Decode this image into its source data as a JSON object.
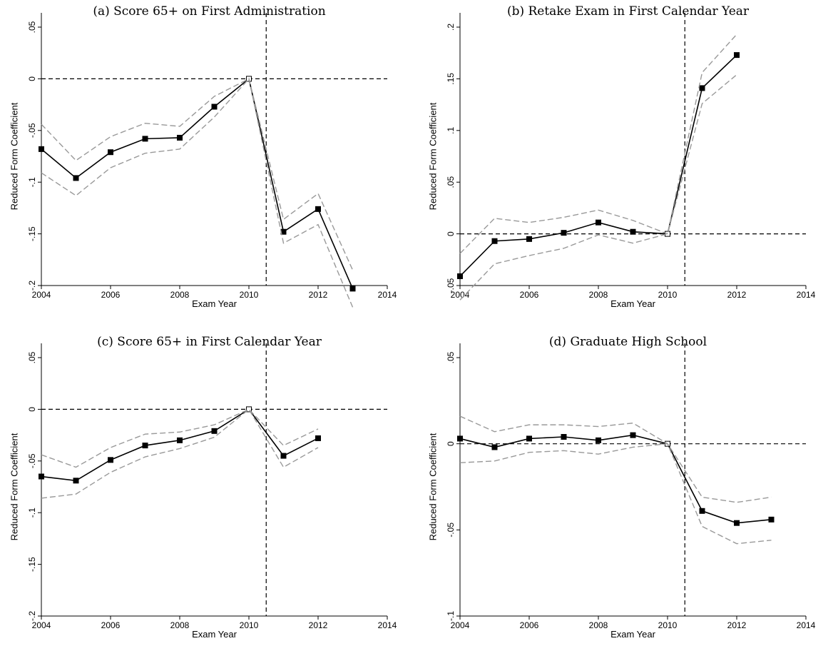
{
  "chart_data": [
    {
      "type": "line",
      "title": "(a) Score 65+ on First Administration",
      "xlabel": "Exam Year",
      "ylabel": "Reduced Form Coefficient",
      "xlim": [
        2004,
        2014
      ],
      "ylim": [
        -0.2,
        0.05
      ],
      "xticks": [
        2004,
        2006,
        2008,
        2010,
        2012,
        2014
      ],
      "xtick_labels": [
        "2004",
        "2006",
        "2008",
        "2010",
        "2012",
        "2014"
      ],
      "yticks": [
        0.05,
        0,
        -0.05,
        -0.1,
        -0.15,
        -0.2
      ],
      "ytick_labels": [
        ".05",
        "0",
        "-.05",
        "-.1",
        "-.15",
        "-.2"
      ],
      "vline": 2010.5,
      "hline": 0,
      "x": [
        2004,
        2005,
        2006,
        2007,
        2008,
        2009,
        2010,
        2011,
        2012,
        2013
      ],
      "series": [
        {
          "role": "estimate",
          "values": [
            -0.068,
            -0.096,
            -0.071,
            -0.058,
            -0.057,
            -0.027,
            0.0,
            -0.148,
            -0.126,
            -0.203
          ]
        },
        {
          "role": "ci-upper",
          "values": [
            -0.044,
            -0.079,
            -0.056,
            -0.043,
            -0.046,
            -0.017,
            0.0,
            -0.136,
            -0.111,
            -0.185
          ]
        },
        {
          "role": "ci-lower",
          "values": [
            -0.091,
            -0.113,
            -0.086,
            -0.072,
            -0.068,
            -0.037,
            0.0,
            -0.159,
            -0.141,
            -0.221
          ]
        }
      ]
    },
    {
      "type": "line",
      "title": "(b) Retake Exam in First Calendar Year",
      "xlabel": "Exam Year",
      "ylabel": "Reduced Form Coefficient",
      "xlim": [
        2004,
        2014
      ],
      "ylim": [
        -0.05,
        0.2
      ],
      "xticks": [
        2004,
        2006,
        2008,
        2010,
        2012,
        2014
      ],
      "xtick_labels": [
        "2004",
        "2006",
        "2008",
        "2010",
        "2012",
        "2014"
      ],
      "yticks": [
        0.2,
        0.15,
        0.1,
        0.05,
        0,
        -0.05
      ],
      "ytick_labels": [
        ".2",
        ".15",
        ".1",
        ".05",
        "0",
        "-.05"
      ],
      "vline": 2010.5,
      "hline": 0,
      "x": [
        2004,
        2005,
        2006,
        2007,
        2008,
        2009,
        2010,
        2011,
        2012
      ],
      "series": [
        {
          "role": "estimate",
          "values": [
            -0.041,
            -0.007,
            -0.005,
            0.001,
            0.011,
            0.002,
            0.0,
            0.141,
            0.173
          ]
        },
        {
          "role": "ci-upper",
          "values": [
            -0.019,
            0.015,
            0.011,
            0.016,
            0.023,
            0.013,
            0.0,
            0.156,
            0.193
          ]
        },
        {
          "role": "ci-lower",
          "values": [
            -0.064,
            -0.029,
            -0.021,
            -0.014,
            -0.001,
            -0.009,
            0.0,
            0.126,
            0.154
          ]
        }
      ]
    },
    {
      "type": "line",
      "title": "(c) Score 65+ in First Calendar Year",
      "xlabel": "Exam Year",
      "ylabel": "Reduced Form Coefficient",
      "xlim": [
        2004,
        2014
      ],
      "ylim": [
        -0.2,
        0.05
      ],
      "xticks": [
        2004,
        2006,
        2008,
        2010,
        2012,
        2014
      ],
      "xtick_labels": [
        "2004",
        "2006",
        "2008",
        "2010",
        "2012",
        "2014"
      ],
      "yticks": [
        0.05,
        0,
        -0.05,
        -0.1,
        -0.15,
        -0.2
      ],
      "ytick_labels": [
        ".05",
        "0",
        "-.05",
        "-.1",
        "-.15",
        "-.2"
      ],
      "vline": 2010.5,
      "hline": 0,
      "x": [
        2004,
        2005,
        2006,
        2007,
        2008,
        2009,
        2010,
        2011,
        2012
      ],
      "series": [
        {
          "role": "estimate",
          "values": [
            -0.065,
            -0.069,
            -0.049,
            -0.035,
            -0.03,
            -0.021,
            0.0,
            -0.045,
            -0.028
          ]
        },
        {
          "role": "ci-upper",
          "values": [
            -0.044,
            -0.056,
            -0.037,
            -0.024,
            -0.022,
            -0.015,
            0.0,
            -0.035,
            -0.019
          ]
        },
        {
          "role": "ci-lower",
          "values": [
            -0.086,
            -0.082,
            -0.061,
            -0.046,
            -0.038,
            -0.027,
            0.0,
            -0.056,
            -0.037
          ]
        }
      ]
    },
    {
      "type": "line",
      "title": "(d) Graduate High School",
      "xlabel": "Exam Year",
      "ylabel": "Reduced Form Coefficient",
      "xlim": [
        2004,
        2014
      ],
      "ylim": [
        -0.1,
        0.05
      ],
      "xticks": [
        2004,
        2006,
        2008,
        2010,
        2012,
        2014
      ],
      "xtick_labels": [
        "2004",
        "2006",
        "2008",
        "2010",
        "2012",
        "2014"
      ],
      "yticks": [
        0.05,
        0,
        -0.05,
        -0.1
      ],
      "ytick_labels": [
        ".05",
        "0",
        "-.05",
        "-.1"
      ],
      "vline": 2010.5,
      "hline": 0,
      "x": [
        2004,
        2005,
        2006,
        2007,
        2008,
        2009,
        2010,
        2011,
        2012,
        2013
      ],
      "series": [
        {
          "role": "estimate",
          "values": [
            0.003,
            -0.002,
            0.003,
            0.004,
            0.002,
            0.005,
            0.0,
            -0.039,
            -0.046,
            -0.044
          ]
        },
        {
          "role": "ci-upper",
          "values": [
            0.016,
            0.007,
            0.011,
            0.011,
            0.01,
            0.012,
            0.0,
            -0.031,
            -0.034,
            -0.031
          ]
        },
        {
          "role": "ci-lower",
          "values": [
            -0.011,
            -0.01,
            -0.005,
            -0.004,
            -0.006,
            -0.002,
            0.0,
            -0.048,
            -0.058,
            -0.056
          ]
        }
      ]
    }
  ]
}
